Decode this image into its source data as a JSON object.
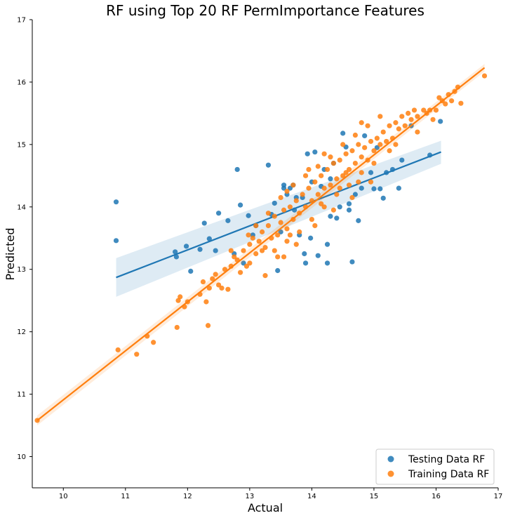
{
  "chart_data": {
    "type": "scatter",
    "title": "RF using Top 20 RF PermImportance Features",
    "xlabel": "Actual",
    "ylabel": "Predicted",
    "xlim": [
      9.5,
      17
    ],
    "ylim": [
      9.5,
      17
    ],
    "xticks": [
      "10",
      "11",
      "12",
      "13",
      "14",
      "15",
      "16",
      "17"
    ],
    "yticks": [
      "10",
      "11",
      "12",
      "13",
      "14",
      "15",
      "16",
      "17"
    ],
    "grid": false,
    "legend_position": "bottom-right",
    "series": [
      {
        "name": "Testing Data RF",
        "color": "#1f77b4",
        "regression": {
          "x": [
            10.85,
            16.08
          ],
          "y": [
            12.87,
            14.88
          ],
          "ci_lower": [
            12.56,
            14.69
          ],
          "ci_upper": [
            13.18,
            15.06
          ]
        },
        "points": [
          [
            10.85,
            14.08
          ],
          [
            10.85,
            13.46
          ],
          [
            11.8,
            13.28
          ],
          [
            11.82,
            13.2
          ],
          [
            11.98,
            13.37
          ],
          [
            12.05,
            12.97
          ],
          [
            12.2,
            13.32
          ],
          [
            12.27,
            13.74
          ],
          [
            12.35,
            13.49
          ],
          [
            12.45,
            13.3
          ],
          [
            12.5,
            13.9
          ],
          [
            12.65,
            13.78
          ],
          [
            12.8,
            14.6
          ],
          [
            12.85,
            14.03
          ],
          [
            12.75,
            13.25
          ],
          [
            12.9,
            13.1
          ],
          [
            12.98,
            13.86
          ],
          [
            13.05,
            13.55
          ],
          [
            13.1,
            13.7
          ],
          [
            13.3,
            14.67
          ],
          [
            13.35,
            13.88
          ],
          [
            13.4,
            14.06
          ],
          [
            13.45,
            12.98
          ],
          [
            13.5,
            13.6
          ],
          [
            13.55,
            14.3
          ],
          [
            13.6,
            14.2
          ],
          [
            13.65,
            14.3
          ],
          [
            13.7,
            14.35
          ],
          [
            13.72,
            13.95
          ],
          [
            13.8,
            13.55
          ],
          [
            13.85,
            14.15
          ],
          [
            13.88,
            13.25
          ],
          [
            13.9,
            13.1
          ],
          [
            13.93,
            14.85
          ],
          [
            13.98,
            13.5
          ],
          [
            14.05,
            14.88
          ],
          [
            14.1,
            13.22
          ],
          [
            14.15,
            14.33
          ],
          [
            14.2,
            14.6
          ],
          [
            14.25,
            13.1
          ],
          [
            14.25,
            13.4
          ],
          [
            14.3,
            13.85
          ],
          [
            14.35,
            14.7
          ],
          [
            14.4,
            13.82
          ],
          [
            14.45,
            14.0
          ],
          [
            14.5,
            15.18
          ],
          [
            14.55,
            14.96
          ],
          [
            14.6,
            13.95
          ],
          [
            14.65,
            13.12
          ],
          [
            14.7,
            14.2
          ],
          [
            14.75,
            13.78
          ],
          [
            14.8,
            14.3
          ],
          [
            14.85,
            15.14
          ],
          [
            14.95,
            14.55
          ],
          [
            15.0,
            14.29
          ],
          [
            15.05,
            14.95
          ],
          [
            15.1,
            14.29
          ],
          [
            15.15,
            14.14
          ],
          [
            15.2,
            14.55
          ],
          [
            15.3,
            14.6
          ],
          [
            15.4,
            14.3
          ],
          [
            15.45,
            14.75
          ],
          [
            15.6,
            15.3
          ],
          [
            15.9,
            14.83
          ],
          [
            16.07,
            15.37
          ],
          [
            13.55,
            14.35
          ],
          [
            13.75,
            14.15
          ],
          [
            14.0,
            14.4
          ],
          [
            14.3,
            14.45
          ],
          [
            14.6,
            14.05
          ]
        ]
      },
      {
        "name": "Training Data RF",
        "color": "#ff7f0e",
        "regression": {
          "x": [
            9.58,
            16.78
          ],
          "y": [
            10.58,
            16.23
          ],
          "ci_lower": [
            10.5,
            16.17
          ],
          "ci_upper": [
            10.66,
            16.29
          ]
        },
        "points": [
          [
            9.58,
            10.58
          ],
          [
            10.88,
            11.71
          ],
          [
            11.18,
            11.64
          ],
          [
            11.35,
            11.93
          ],
          [
            11.45,
            11.83
          ],
          [
            11.83,
            12.07
          ],
          [
            11.85,
            12.5
          ],
          [
            11.88,
            12.56
          ],
          [
            11.95,
            12.4
          ],
          [
            12.0,
            12.48
          ],
          [
            12.2,
            12.6
          ],
          [
            12.25,
            12.8
          ],
          [
            12.3,
            12.48
          ],
          [
            12.33,
            12.1
          ],
          [
            12.35,
            12.7
          ],
          [
            12.4,
            12.85
          ],
          [
            12.45,
            12.92
          ],
          [
            12.5,
            12.75
          ],
          [
            12.55,
            12.7
          ],
          [
            12.6,
            13.0
          ],
          [
            12.65,
            12.68
          ],
          [
            12.7,
            13.05
          ],
          [
            12.75,
            13.2
          ],
          [
            12.8,
            13.15
          ],
          [
            12.85,
            12.95
          ],
          [
            12.9,
            13.3
          ],
          [
            12.95,
            13.05
          ],
          [
            13.0,
            13.4
          ],
          [
            13.05,
            13.5
          ],
          [
            13.1,
            13.25
          ],
          [
            13.15,
            13.45
          ],
          [
            13.2,
            13.6
          ],
          [
            13.25,
            13.35
          ],
          [
            13.3,
            13.7
          ],
          [
            13.35,
            13.5
          ],
          [
            13.4,
            13.85
          ],
          [
            13.45,
            13.55
          ],
          [
            13.5,
            13.75
          ],
          [
            13.55,
            13.95
          ],
          [
            13.6,
            13.65
          ],
          [
            13.65,
            14.0
          ],
          [
            13.7,
            13.8
          ],
          [
            13.75,
            14.1
          ],
          [
            13.8,
            13.9
          ],
          [
            13.85,
            14.2
          ],
          [
            13.9,
            14.0
          ],
          [
            13.95,
            14.3
          ],
          [
            14.0,
            14.1
          ],
          [
            14.05,
            14.4
          ],
          [
            14.1,
            14.2
          ],
          [
            14.15,
            14.5
          ],
          [
            14.2,
            14.3
          ],
          [
            14.25,
            14.6
          ],
          [
            14.3,
            14.35
          ],
          [
            14.35,
            14.7
          ],
          [
            14.4,
            14.45
          ],
          [
            14.45,
            14.75
          ],
          [
            14.5,
            14.5
          ],
          [
            14.55,
            14.85
          ],
          [
            14.6,
            14.6
          ],
          [
            14.65,
            14.9
          ],
          [
            14.7,
            14.7
          ],
          [
            14.75,
            15.0
          ],
          [
            14.8,
            14.8
          ],
          [
            14.85,
            14.95
          ],
          [
            14.9,
            14.75
          ],
          [
            14.95,
            15.05
          ],
          [
            15.0,
            14.9
          ],
          [
            15.05,
            15.1
          ],
          [
            15.1,
            15.0
          ],
          [
            15.15,
            15.2
          ],
          [
            15.2,
            15.05
          ],
          [
            15.25,
            15.3
          ],
          [
            15.3,
            15.1
          ],
          [
            15.35,
            15.35
          ],
          [
            15.4,
            15.25
          ],
          [
            15.45,
            15.45
          ],
          [
            15.5,
            15.3
          ],
          [
            15.55,
            15.5
          ],
          [
            15.6,
            15.4
          ],
          [
            15.65,
            15.55
          ],
          [
            15.7,
            15.45
          ],
          [
            15.8,
            15.55
          ],
          [
            15.85,
            15.5
          ],
          [
            15.9,
            15.55
          ],
          [
            16.0,
            15.55
          ],
          [
            16.05,
            15.75
          ],
          [
            16.1,
            15.7
          ],
          [
            16.15,
            15.65
          ],
          [
            16.2,
            15.8
          ],
          [
            16.3,
            15.85
          ],
          [
            16.35,
            15.92
          ],
          [
            16.4,
            15.66
          ],
          [
            16.78,
            16.1
          ],
          [
            13.0,
            13.1
          ],
          [
            13.2,
            13.3
          ],
          [
            13.4,
            13.3
          ],
          [
            13.6,
            13.45
          ],
          [
            13.8,
            13.6
          ],
          [
            14.0,
            13.8
          ],
          [
            14.2,
            14.0
          ],
          [
            14.4,
            14.2
          ],
          [
            14.6,
            14.35
          ],
          [
            14.8,
            14.55
          ],
          [
            15.0,
            14.7
          ],
          [
            13.3,
            13.9
          ],
          [
            13.5,
            14.15
          ],
          [
            13.7,
            14.35
          ],
          [
            13.9,
            14.5
          ],
          [
            14.1,
            14.65
          ],
          [
            14.3,
            14.8
          ],
          [
            14.5,
            15.0
          ],
          [
            14.7,
            15.15
          ],
          [
            14.9,
            15.3
          ],
          [
            13.1,
            13.7
          ],
          [
            13.6,
            14.25
          ],
          [
            14.2,
            14.85
          ],
          [
            14.8,
            15.35
          ],
          [
            15.1,
            15.45
          ],
          [
            13.45,
            13.2
          ],
          [
            13.75,
            13.4
          ],
          [
            14.05,
            13.7
          ],
          [
            14.35,
            13.95
          ],
          [
            14.65,
            14.15
          ],
          [
            14.95,
            14.4
          ],
          [
            13.95,
            14.6
          ],
          [
            14.45,
            14.3
          ],
          [
            13.65,
            13.55
          ],
          [
            14.15,
            14.05
          ],
          [
            14.55,
            14.55
          ],
          [
            15.25,
            14.9
          ],
          [
            12.98,
            13.55
          ],
          [
            12.7,
            13.3
          ],
          [
            13.25,
            12.9
          ],
          [
            13.55,
            13.2
          ],
          [
            14.75,
            14.4
          ],
          [
            15.35,
            15.0
          ],
          [
            15.7,
            15.2
          ],
          [
            15.95,
            15.4
          ],
          [
            16.25,
            15.7
          ]
        ]
      }
    ]
  }
}
